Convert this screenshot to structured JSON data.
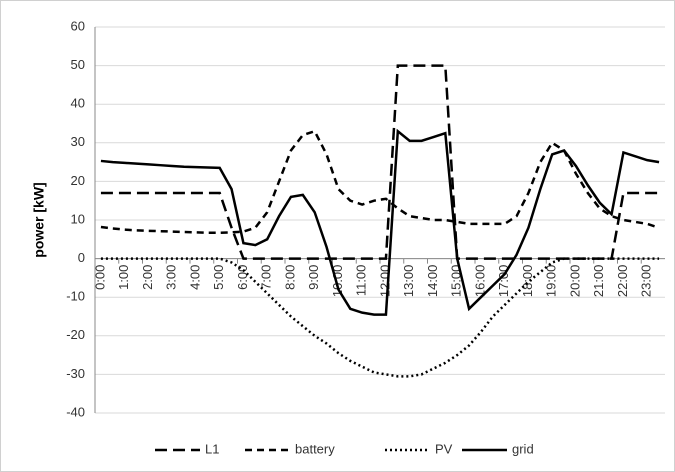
{
  "chart_data": {
    "type": "line",
    "ylabel": "power [kW]",
    "categories": [
      "0:00",
      null,
      "1:00",
      null,
      "2:00",
      null,
      "3:00",
      null,
      "4:00",
      null,
      "5:00",
      null,
      "6:00",
      null,
      "7:00",
      null,
      "8:00",
      null,
      "9:00",
      null,
      "10:00",
      null,
      "11:00",
      null,
      "12:00",
      null,
      "13:00",
      null,
      "14:00",
      null,
      "15:00",
      null,
      "16:00",
      null,
      "17:00",
      null,
      "18:00",
      null,
      "19:00",
      null,
      "20:00",
      null,
      "21:00",
      null,
      "22:00",
      null,
      "23:00",
      null
    ],
    "series": [
      {
        "name": "L1",
        "color": "#000000",
        "dash": "long",
        "values": [
          17,
          17,
          17,
          17,
          17,
          17,
          17,
          17,
          17,
          17,
          17,
          8,
          0,
          0,
          0,
          0,
          0,
          0,
          0,
          0,
          0,
          0,
          0,
          0,
          0,
          50,
          50,
          50,
          50,
          50,
          0,
          0,
          0,
          0,
          0,
          0,
          0,
          0,
          0,
          0,
          0,
          0,
          0,
          0,
          17,
          17,
          17,
          17
        ]
      },
      {
        "name": "battery",
        "color": "#000000",
        "dash": "medium",
        "values": [
          8.2,
          7.8,
          7.5,
          7.3,
          7.2,
          7.1,
          7,
          6.9,
          6.8,
          6.7,
          6.7,
          6.8,
          7,
          8,
          12,
          20,
          28,
          32,
          33,
          27,
          18,
          15,
          14,
          15,
          15.5,
          13,
          11,
          10.5,
          10,
          10,
          9.5,
          9,
          9,
          9,
          9,
          11,
          17,
          25,
          30,
          28,
          22,
          17,
          13,
          11,
          10,
          9.5,
          9,
          8
        ]
      },
      {
        "name": "PV",
        "color": "#000000",
        "dash": "dotted",
        "values": [
          0,
          0,
          0,
          0,
          0,
          0,
          0,
          0,
          0,
          0,
          0,
          -1,
          -3,
          -6,
          -9,
          -12,
          -15,
          -17.5,
          -20,
          -22,
          -24.5,
          -26.5,
          -28,
          -29.5,
          -30,
          -30.5,
          -30.5,
          -30,
          -28.5,
          -27,
          -25,
          -22.5,
          -19,
          -15,
          -12,
          -9,
          -6,
          -3.5,
          -1,
          0,
          0,
          0,
          0,
          0,
          0,
          0,
          0,
          0
        ]
      },
      {
        "name": "grid",
        "color": "#000000",
        "dash": "solid",
        "values": [
          25.3,
          25,
          24.8,
          24.6,
          24.4,
          24.2,
          24,
          23.8,
          23.7,
          23.6,
          23.5,
          18,
          4,
          3.5,
          5,
          11,
          16,
          16.5,
          12,
          3,
          -8,
          -13,
          -14,
          -14.5,
          -14.5,
          33,
          30.5,
          30.5,
          31.5,
          32.5,
          0,
          -13,
          -10,
          -7,
          -4,
          1,
          8,
          18,
          27,
          28,
          24,
          19,
          14.5,
          11.5,
          27.5,
          26.5,
          25.5,
          25
        ]
      }
    ],
    "ylim": [
      -40,
      60
    ],
    "yticks": [
      -40,
      -30,
      -20,
      -10,
      0,
      10,
      20,
      30,
      40,
      50,
      60
    ],
    "grid": true,
    "legend": "bottom"
  }
}
